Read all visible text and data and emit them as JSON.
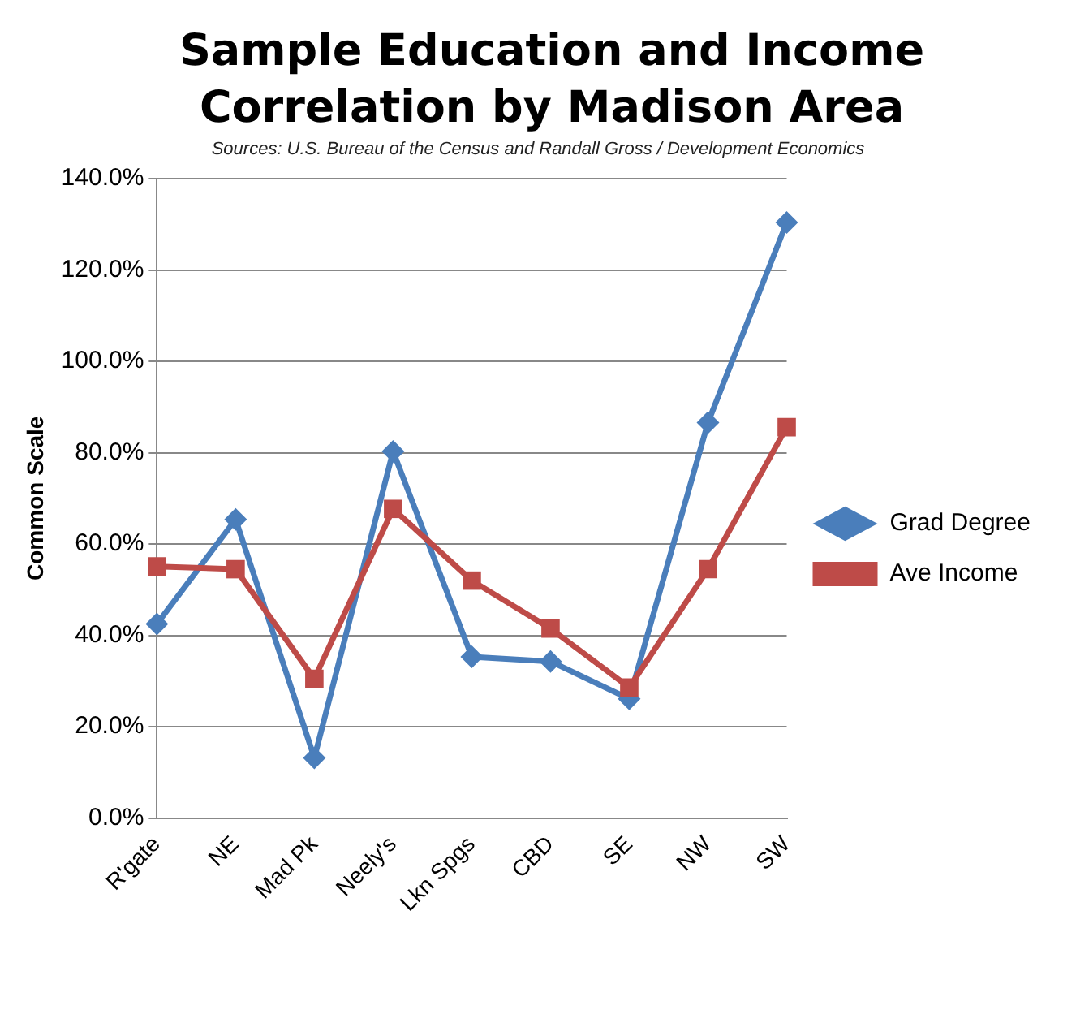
{
  "chart_data": {
    "type": "line",
    "title": "Sample Education and Income Correlation by Madison Area",
    "subtitle": "Sources: U.S. Bureau of the Census and Randall Gross / Development Economics",
    "ylabel": "Common Scale",
    "categories": [
      "R'gate",
      "NE",
      "Mad Pk",
      "Neely's",
      "Lkn Spgs",
      "CBD",
      "SE",
      "NW",
      "SW"
    ],
    "series": [
      {
        "name": "Grad Degree",
        "color": "#4a7ebb",
        "marker": "diamond",
        "values": [
          42.5,
          65.4,
          13.2,
          80.3,
          35.3,
          34.3,
          26.1,
          86.6,
          130.4
        ]
      },
      {
        "name": "Ave Income",
        "color": "#be4b48",
        "marker": "square",
        "values": [
          55.1,
          54.5,
          30.5,
          67.7,
          52.0,
          41.5,
          28.6,
          54.5,
          85.6
        ]
      }
    ],
    "ylim": [
      0,
      140
    ],
    "yticks": [
      {
        "value": 0,
        "label": "0.0%"
      },
      {
        "value": 20,
        "label": "20.0%"
      },
      {
        "value": 40,
        "label": "40.0%"
      },
      {
        "value": 60,
        "label": "60.0%"
      },
      {
        "value": 80,
        "label": "80.0%"
      },
      {
        "value": 100,
        "label": "100.0%"
      },
      {
        "value": 120,
        "label": "120.0%"
      },
      {
        "value": 140,
        "label": "140.0%"
      }
    ],
    "grid": "y",
    "legend": "right",
    "line_style": "solid"
  }
}
